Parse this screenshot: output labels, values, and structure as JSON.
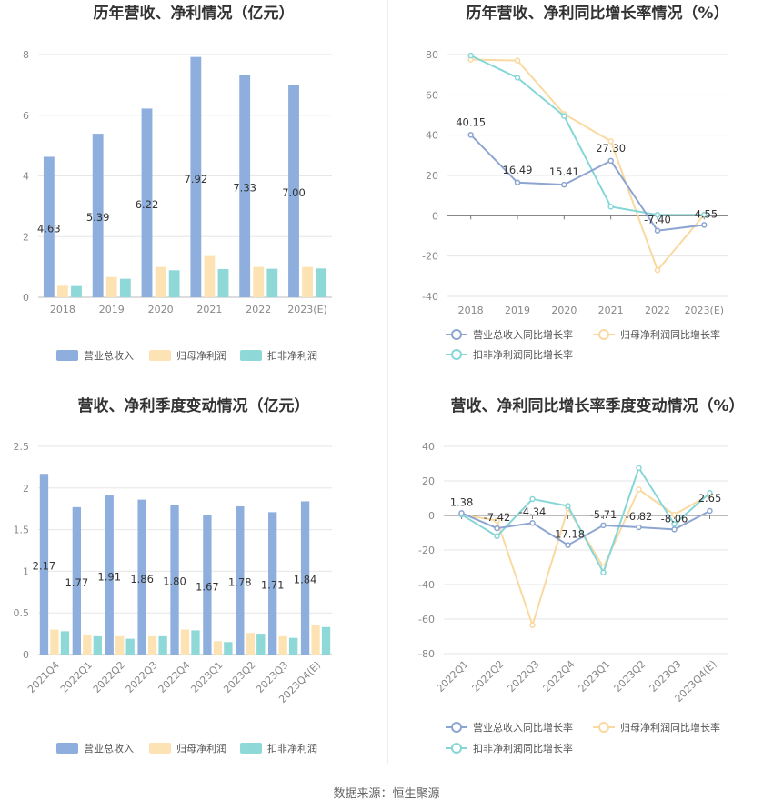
{
  "source": "数据来源：恒生聚源",
  "colors": {
    "revenue": "#8eaedd",
    "net_profit": "#fde3b4",
    "deducted_profit": "#8ed9d8",
    "revenue_line": "#8da5d1",
    "net_profit_line": "#fad9a0",
    "deducted_line": "#86d6d8",
    "grid": "#e6e6e6",
    "axis": "#bbbbbb"
  },
  "legend_bar": [
    "营业总收入",
    "归母净利润",
    "扣非净利润"
  ],
  "legend_line": [
    "营业总收入同比增长率",
    "归母净利润同比增长率",
    "扣非净利润同比增长率"
  ],
  "chart_data": [
    {
      "type": "bar",
      "title": "历年营收、净利情况（亿元）",
      "categories": [
        "2018",
        "2019",
        "2020",
        "2021",
        "2022",
        "2023(E)"
      ],
      "ylim": [
        0,
        8
      ],
      "yticks": [
        0,
        2,
        4,
        6,
        8
      ],
      "series": [
        {
          "name": "营业总收入",
          "values": [
            4.63,
            5.39,
            6.22,
            7.92,
            7.33,
            7.0
          ],
          "labels": [
            "4.63",
            "5.39",
            "6.22",
            "7.92",
            "7.33",
            "7.00"
          ]
        },
        {
          "name": "归母净利润",
          "values": [
            0.38,
            0.67,
            1.0,
            1.36,
            1.0,
            1.0
          ]
        },
        {
          "name": "扣非净利润",
          "values": [
            0.37,
            0.61,
            0.89,
            0.93,
            0.94,
            0.95
          ]
        }
      ],
      "legend": "bottom"
    },
    {
      "type": "line",
      "title": "历年营收、净利同比增长率情况（%）",
      "categories": [
        "2018",
        "2019",
        "2020",
        "2021",
        "2022",
        "2023(E)"
      ],
      "ylim": [
        -40,
        80
      ],
      "yticks": [
        -40,
        -20,
        0,
        20,
        40,
        60,
        80
      ],
      "series": [
        {
          "name": "营业总收入同比增长率",
          "values": [
            40.15,
            16.49,
            15.41,
            27.3,
            -7.4,
            -4.55
          ],
          "labels": [
            "40.15",
            "16.49",
            "15.41",
            "27.30",
            "-7.40",
            "-4.55"
          ]
        },
        {
          "name": "归母净利润同比增长率",
          "values": [
            77.5,
            77.0,
            50.5,
            37.0,
            -27.0,
            0.5
          ]
        },
        {
          "name": "扣非净利润同比增长率",
          "values": [
            79.5,
            68.5,
            49.5,
            4.5,
            0.5,
            0.5
          ]
        }
      ],
      "legend": "bottom"
    },
    {
      "type": "bar",
      "title": "营收、净利季度变动情况（亿元）",
      "categories": [
        "2021Q4",
        "2022Q1",
        "2022Q2",
        "2022Q3",
        "2022Q4",
        "2023Q1",
        "2023Q2",
        "2023Q3",
        "2023Q4(E)"
      ],
      "ylim": [
        0,
        2.5
      ],
      "yticks": [
        0,
        0.5,
        1,
        1.5,
        2,
        2.5
      ],
      "series": [
        {
          "name": "营业总收入",
          "values": [
            2.17,
            1.77,
            1.91,
            1.86,
            1.8,
            1.67,
            1.78,
            1.71,
            1.84
          ],
          "labels": [
            "2.17",
            "1.77",
            "1.91",
            "1.86",
            "1.80",
            "1.67",
            "1.78",
            "1.71",
            "1.84"
          ]
        },
        {
          "name": "归母净利润",
          "values": [
            0.3,
            0.23,
            0.22,
            0.22,
            0.3,
            0.16,
            0.26,
            0.22,
            0.36
          ]
        },
        {
          "name": "扣非净利润",
          "values": [
            0.28,
            0.22,
            0.19,
            0.22,
            0.29,
            0.15,
            0.25,
            0.2,
            0.33
          ]
        }
      ],
      "legend": "bottom"
    },
    {
      "type": "line",
      "title": "营收、净利同比增长率季度变动情况（%）",
      "categories": [
        "2022Q1",
        "2022Q2",
        "2022Q3",
        "2022Q4",
        "2023Q1",
        "2023Q2",
        "2023Q3",
        "2023Q4(E)"
      ],
      "ylim": [
        -80,
        40
      ],
      "yticks": [
        -80,
        -60,
        -40,
        -20,
        0,
        20,
        40
      ],
      "series": [
        {
          "name": "营业总收入同比增长率",
          "values": [
            1.38,
            -7.42,
            -4.34,
            -17.18,
            -5.71,
            -6.82,
            -8.06,
            2.65
          ],
          "labels": [
            "1.38",
            "-7.42",
            "-4.34",
            "-17.18",
            "-5.71",
            "-6.82",
            "-8.06",
            "2.65"
          ]
        },
        {
          "name": "归母净利润同比增长率",
          "values": [
            0.5,
            -3.0,
            -63.5,
            4.0,
            -30.0,
            15.0,
            0.5,
            12.0
          ]
        },
        {
          "name": "扣非净利润同比增长率",
          "values": [
            0.5,
            -12.0,
            9.5,
            5.5,
            -33.0,
            27.5,
            -5.0,
            13.0
          ]
        }
      ],
      "legend": "bottom"
    }
  ]
}
